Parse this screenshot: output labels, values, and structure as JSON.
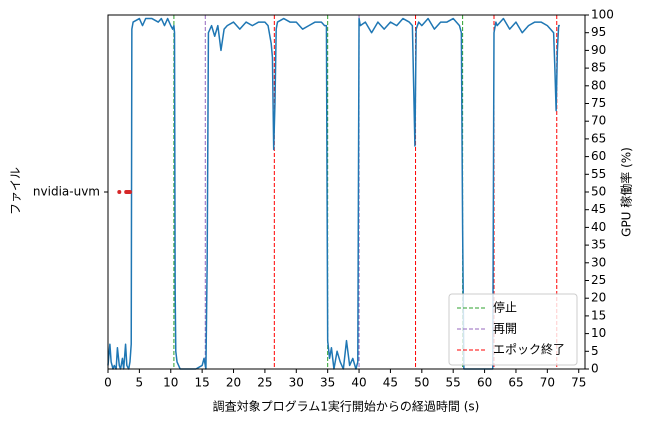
{
  "chart_data": {
    "type": "line",
    "xlabel": "調査対象プログラム1実行開始からの経過時間 (s)",
    "ylabel": "ファイル",
    "y2label": "GPU 稼働率 (%)",
    "xlim": [
      0,
      76
    ],
    "xticks": [
      0,
      5,
      10,
      15,
      20,
      25,
      30,
      35,
      40,
      45,
      50,
      55,
      60,
      65,
      70,
      75
    ],
    "y2lim": [
      0,
      100
    ],
    "y2ticks": [
      0,
      5,
      10,
      15,
      20,
      25,
      30,
      35,
      40,
      45,
      50,
      55,
      60,
      65,
      70,
      75,
      80,
      85,
      90,
      95,
      100
    ],
    "categories": [
      "nvidia-uvm"
    ],
    "legend": "lower right",
    "series": [
      {
        "type": "line",
        "axis": "y2",
        "color": "#1f77b4",
        "x": [
          0,
          0.3,
          0.5,
          0.8,
          1,
          1.3,
          1.5,
          1.8,
          2,
          2.3,
          2.5,
          2.8,
          3,
          3.3,
          3.5,
          3.7,
          3.8,
          4,
          5,
          5.5,
          6,
          7,
          8,
          8.5,
          9,
          9.5,
          10,
          10.3,
          10.5,
          10.6,
          10.7,
          10.8,
          11,
          11.5,
          12,
          13,
          14,
          15,
          15.3,
          15.6,
          15.8,
          16,
          16.5,
          17,
          17.5,
          18,
          18.5,
          19,
          20,
          21,
          22,
          23,
          24,
          25,
          25.5,
          26,
          26.2,
          26.4,
          26.6,
          26.8,
          27,
          28,
          29,
          30,
          31,
          32,
          33,
          34,
          34.5,
          34.8,
          35,
          35.3,
          35.6,
          36,
          36.5,
          37,
          37.5,
          38,
          38.5,
          39,
          39.5,
          39.8,
          40,
          40.2,
          41,
          42,
          43,
          44,
          45,
          46,
          47,
          48,
          48.5,
          48.7,
          48.9,
          49.1,
          49.5,
          50,
          51,
          52,
          53,
          54,
          55,
          56,
          56.3,
          56.5,
          56.7,
          57,
          58,
          59,
          60,
          61,
          61.3,
          61.5,
          61.8,
          62,
          63,
          64,
          65,
          66,
          67,
          68,
          69,
          70,
          70.5,
          71,
          71.2,
          71.4,
          71.6,
          71.8,
          72
        ],
        "values": [
          1,
          7,
          2,
          0,
          1,
          0,
          6,
          1,
          0,
          3,
          0,
          7,
          1,
          0,
          2,
          7,
          96,
          98,
          99,
          97,
          99,
          99,
          98,
          99,
          97,
          99,
          97,
          96,
          97,
          95,
          22,
          5,
          2,
          0,
          0,
          0,
          0,
          1,
          3,
          0,
          30,
          95,
          97,
          94,
          97,
          90,
          96,
          97,
          98,
          96,
          98,
          97,
          98,
          98,
          97,
          92,
          88,
          62,
          75,
          96,
          98,
          99,
          98,
          98,
          96,
          97,
          98,
          98,
          97,
          97,
          8,
          3,
          6,
          0,
          5,
          2,
          0,
          8,
          1,
          3,
          0,
          2,
          99,
          97,
          98,
          95,
          98,
          96,
          98,
          97,
          99,
          98,
          97,
          80,
          63,
          96,
          98,
          97,
          99,
          96,
          98,
          98,
          99,
          97,
          95,
          40,
          0,
          0,
          0,
          0,
          0,
          0,
          0,
          95,
          98,
          97,
          99,
          96,
          98,
          95,
          97,
          98,
          98,
          97,
          96,
          95,
          85,
          73,
          90,
          97,
          97
        ]
      },
      {
        "type": "scatter",
        "color": "#d62728",
        "x": [
          1.8,
          2.9,
          3.1,
          3.3,
          3.5
        ],
        "values": [
          "nvidia-uvm",
          "nvidia-uvm",
          "nvidia-uvm",
          "nvidia-uvm",
          "nvidia-uvm"
        ]
      }
    ],
    "events": [
      {
        "name": "停止",
        "color": "#2ca02c",
        "x": [
          10.5,
          35,
          56.5
        ]
      },
      {
        "name": "再開",
        "color": "#9467bd",
        "x": [
          15.5,
          40
        ]
      },
      {
        "name": "エポック終了",
        "color": "#ff0000",
        "x": [
          26.5,
          49,
          61.5,
          71.5
        ]
      }
    ]
  }
}
